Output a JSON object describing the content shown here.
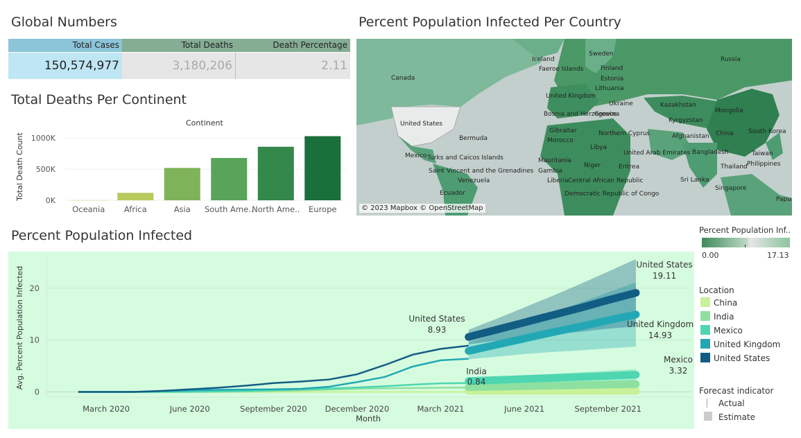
{
  "global_numbers": {
    "title": "Global Numbers",
    "headers": [
      "Total Cases",
      "Total Deaths",
      "Death Percentage"
    ],
    "values": [
      "150,574,977",
      "3,180,206",
      "2.11"
    ],
    "header_colors": [
      "#8cc4d8",
      "#85ad94",
      "#85ad94"
    ],
    "value_bg_colors": [
      "#bfe6f4",
      "#e6e6e6",
      "#e6e6e6"
    ]
  },
  "map": {
    "title": "Percent Population Infected Per Country",
    "attribution": "© 2023 Mapbox © OpenStreetMap",
    "labels": [
      "Russia",
      "Sweden",
      "Iceland",
      "Faeroe Islands",
      "Finland",
      "Estonia",
      "Lithuania",
      "Canada",
      "United Kingdom",
      "Ukraine",
      "Bosnia and Herzegovina",
      "Kazakhstan",
      "Mongolia",
      "Greece",
      "Kyrgyzstan",
      "United States",
      "Gibraltar",
      "Northern Cyprus",
      "China",
      "South Korea",
      "Bermuda",
      "Morocco",
      "Afghanistan",
      "Libya",
      "Taiwan",
      "Mexico",
      "Turks and Caicos Islands",
      "United Arab Emirates",
      "Bangladesh",
      "Mauritania",
      "Philippines",
      "Niger",
      "Eritrea",
      "Thailand",
      "Saint Vincent and the Grenadines",
      "Gambia",
      "Venezuela",
      "Liberia",
      "Central African Republic",
      "Sri Lanka",
      "Singapore",
      "Ecuador",
      "Democratic Republic of Congo",
      "Papua New"
    ],
    "legend_title": "Percent Population Inf..",
    "legend_min": "0.00",
    "legend_max": "17.13"
  },
  "chart_data": [
    {
      "type": "bar",
      "title": "Total Deaths Per Continent",
      "header": "Continent",
      "ylabel": "Total Death Count",
      "categories": [
        "Oceania",
        "Africa",
        "Asia",
        "South Ame..",
        "North Ame..",
        "Europe"
      ],
      "values": [
        1000,
        120000,
        520000,
        680000,
        860000,
        1030000
      ],
      "colors": [
        "#c9dc7e",
        "#b8c95e",
        "#7fb35a",
        "#58a45b",
        "#34884a",
        "#19703a"
      ],
      "yticks": [
        "0K",
        "500K",
        "1000K"
      ],
      "ylim": [
        0,
        1080000
      ]
    },
    {
      "type": "line",
      "title": "Percent Population Infected",
      "xlabel": "Month",
      "ylabel": "Avg. Percent Population Infected",
      "xticks": [
        "March 2020",
        "June 2020",
        "September 2020",
        "December 2020",
        "March 2021",
        "June 2021",
        "September 2021"
      ],
      "yticks": [
        "0",
        "10",
        "20"
      ],
      "ylim": [
        -1,
        26
      ],
      "x_months": [
        "Jan 2020",
        "Feb 2020",
        "Mar 2020",
        "Apr 2020",
        "May 2020",
        "Jun 2020",
        "Jul 2020",
        "Aug 2020",
        "Sep 2020",
        "Oct 2020",
        "Nov 2020",
        "Dec 2020",
        "Jan 2021",
        "Feb 2021",
        "Mar 2021",
        "Apr 2021",
        "May 2021",
        "Jun 2021",
        "Jul 2021",
        "Aug 2021",
        "Sep 2021",
        "Oct 2021"
      ],
      "series": [
        {
          "name": "China",
          "color": "#c8f29a",
          "actual": [
            0,
            0,
            0,
            0,
            0,
            0,
            0,
            0,
            0,
            0,
            0,
            0,
            0,
            0,
            0
          ],
          "forecast": [
            0.2,
            0.2,
            0.2,
            0.2,
            0.2,
            0.2,
            0.2
          ],
          "band": [
            0.3,
            0.3,
            0.3,
            0.3,
            0.3,
            0.3,
            0.3
          ]
        },
        {
          "name": "India",
          "color": "#8ee0a0",
          "actual": [
            0,
            0,
            0,
            0.01,
            0.01,
            0.03,
            0.08,
            0.16,
            0.3,
            0.45,
            0.6,
            0.7,
            0.76,
            0.8,
            0.84
          ],
          "forecast": [
            0.9,
            1.0,
            1.1,
            1.2,
            1.3,
            1.4,
            1.5
          ],
          "band": [
            0.3,
            0.4,
            0.5,
            0.6,
            0.7,
            0.8,
            0.9
          ]
        },
        {
          "name": "Mexico",
          "color": "#4dd6b0",
          "actual": [
            0,
            0,
            0,
            0.01,
            0.03,
            0.1,
            0.2,
            0.35,
            0.5,
            0.65,
            0.85,
            1.1,
            1.4,
            1.65,
            1.7
          ],
          "forecast": [
            2.1,
            2.3,
            2.5,
            2.7,
            2.9,
            3.1,
            3.32
          ],
          "band": [
            0.5,
            0.6,
            0.7,
            0.8,
            0.9,
            1.0,
            1.1
          ]
        },
        {
          "name": "United Kingdom",
          "color": "#22a8b4",
          "actual": [
            0,
            0,
            0,
            0.15,
            0.3,
            0.4,
            0.45,
            0.5,
            0.6,
            1.0,
            1.9,
            2.9,
            4.9,
            6.1,
            6.4
          ],
          "forecast": [
            7.9,
            9.1,
            10.3,
            11.5,
            12.6,
            13.8,
            14.93
          ],
          "band": [
            1.6,
            2.3,
            3.0,
            3.8,
            4.6,
            5.4,
            6.2
          ]
        },
        {
          "name": "United States",
          "color": "#125d84",
          "actual": [
            0,
            0,
            0,
            0.2,
            0.5,
            0.8,
            1.2,
            1.7,
            2.0,
            2.4,
            3.4,
            5.2,
            7.2,
            8.3,
            8.93
          ],
          "forecast": [
            10.6,
            12.0,
            13.4,
            14.8,
            16.2,
            17.7,
            19.11
          ],
          "band": [
            1.4,
            2.1,
            2.9,
            3.7,
            4.6,
            5.5,
            6.5
          ]
        }
      ],
      "annotations": [
        {
          "name": "United States",
          "value": "8.93"
        },
        {
          "name": "India",
          "value": "0.84"
        },
        {
          "name": "United States",
          "value": "19.11"
        },
        {
          "name": "United Kingdom",
          "value": "14.93"
        },
        {
          "name": "Mexico",
          "value": "3.32"
        }
      ]
    }
  ],
  "location_legend": {
    "title": "Location",
    "items": [
      {
        "label": "China",
        "color": "#c8f29a"
      },
      {
        "label": "India",
        "color": "#8ee0a0"
      },
      {
        "label": "Mexico",
        "color": "#4dd6b0"
      },
      {
        "label": "United Kingdom",
        "color": "#22a8b4"
      },
      {
        "label": "United States",
        "color": "#125d84"
      }
    ]
  },
  "forecast_legend": {
    "title": "Forecast indicator",
    "actual": "Actual",
    "estimate": "Estimate"
  }
}
